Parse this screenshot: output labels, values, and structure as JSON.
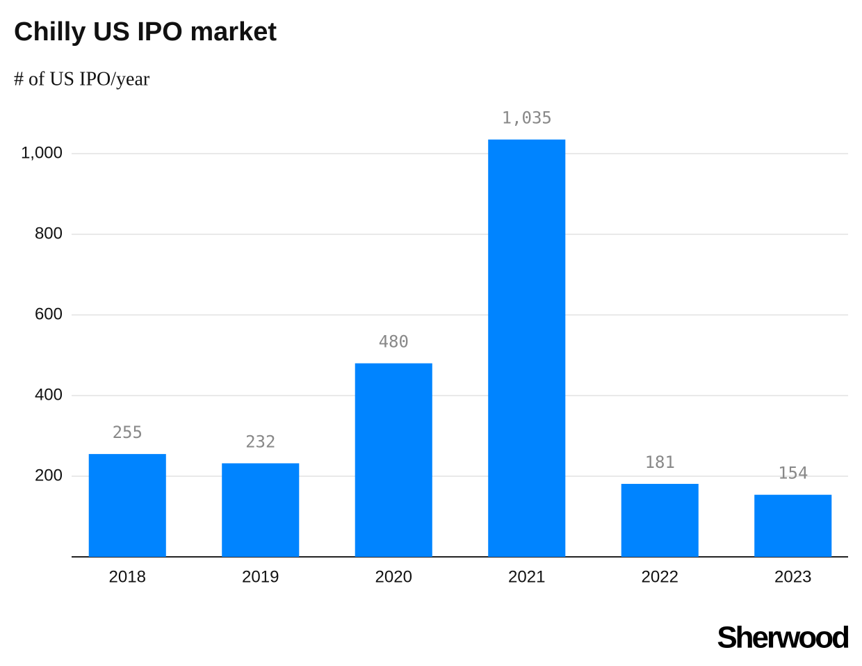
{
  "chart_data": {
    "type": "bar",
    "title": "Chilly US IPO market",
    "subtitle": "# of US IPO/year",
    "categories": [
      "2018",
      "2019",
      "2020",
      "2021",
      "2022",
      "2023"
    ],
    "values": [
      255,
      232,
      480,
      1035,
      181,
      154
    ],
    "value_labels": [
      "255",
      "232",
      "480",
      "1,035",
      "181",
      "154"
    ],
    "color": "#0084ff",
    "ylim": [
      0,
      1100
    ],
    "yticks": [
      200,
      400,
      600,
      800,
      {
        "value": 1000,
        "label": "1,000"
      }
    ],
    "grid": true
  },
  "brand": "Sherwood"
}
